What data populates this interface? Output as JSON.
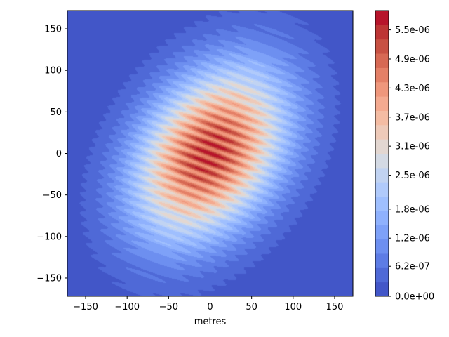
{
  "chart_data": {
    "type": "heatmap",
    "subtype": "filled-contour",
    "title": "",
    "xlabel": "metres",
    "ylabel": "",
    "xlim": [
      -172,
      172
    ],
    "ylim": [
      -172,
      172
    ],
    "x_ticks": [
      -150,
      -100,
      -50,
      0,
      50,
      100,
      150
    ],
    "y_ticks": [
      -150,
      -100,
      -50,
      0,
      50,
      100,
      150
    ],
    "x_tick_labels": [
      "−150",
      "−100",
      "−50",
      "0",
      "50",
      "100",
      "150"
    ],
    "y_tick_labels": [
      "−150",
      "−100",
      "−50",
      "0",
      "50",
      "100",
      "150"
    ],
    "field": {
      "description_free_params_in_data_units": true,
      "peak_value": 5.9e-06,
      "center": [
        0,
        0
      ],
      "sigma_major": 80,
      "sigma_minor": 55,
      "major_axis_angle_deg": 55,
      "fringe_period": 11,
      "fringe_angle_deg": 70,
      "fringe_depth": 0.12
    },
    "colorbar": {
      "colormap": "coolwarm",
      "levels": 20,
      "vmin": 0,
      "vmax": 5.9e-06,
      "tick_values": [
        0,
        6.2e-07,
        1.2e-06,
        1.8e-06,
        2.5e-06,
        3.1e-06,
        3.7e-06,
        4.3e-06,
        4.9e-06,
        5.5e-06
      ],
      "tick_labels": [
        "0.0e+00",
        "6.2e-07",
        "1.2e-06",
        "1.8e-06",
        "2.5e-06",
        "3.1e-06",
        "3.7e-06",
        "4.3e-06",
        "4.9e-06",
        "5.5e-06"
      ]
    }
  }
}
